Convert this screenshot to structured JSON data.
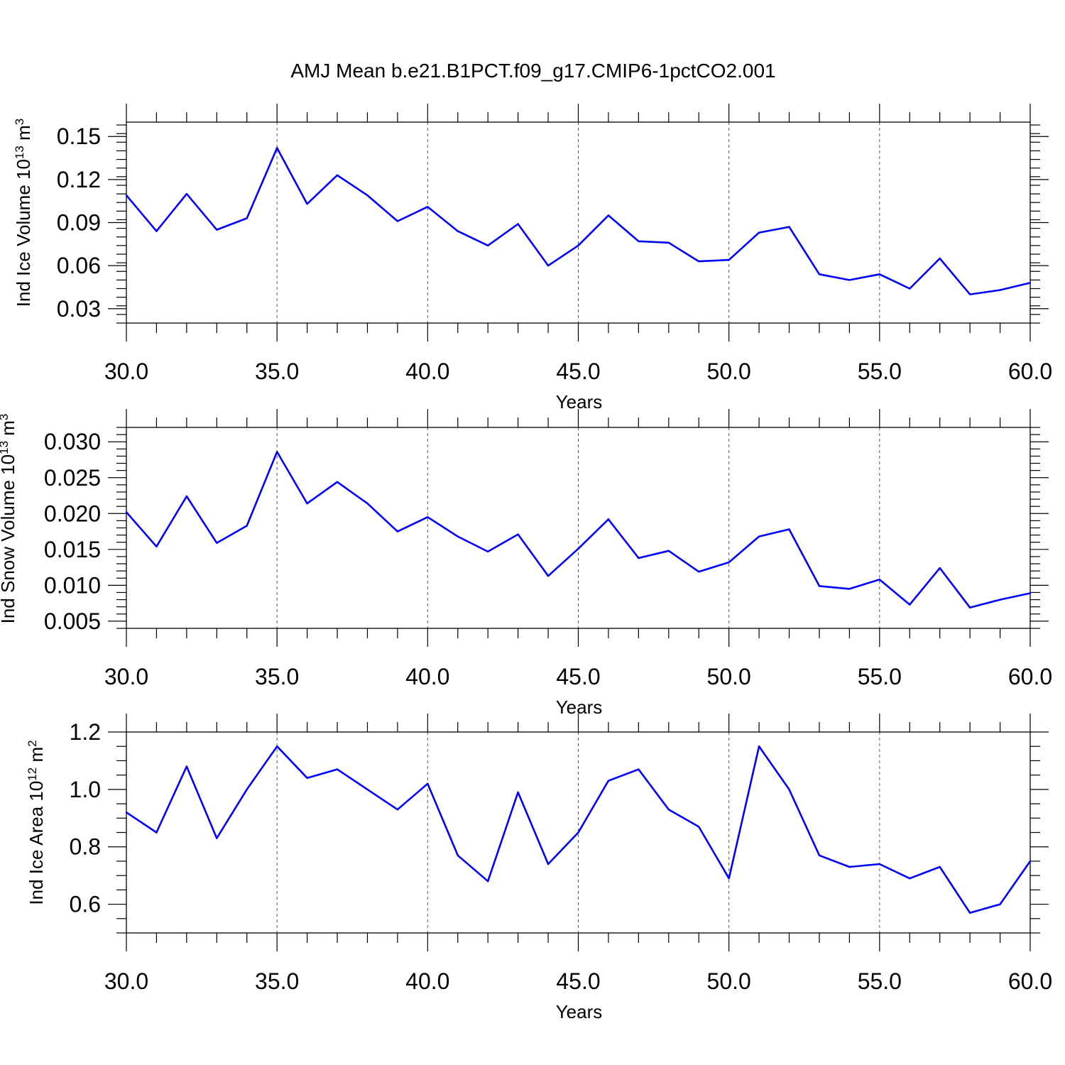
{
  "title": "AMJ Mean b.e21.B1PCT.f09_g17.CMIP6-1pctCO2.001",
  "chart_data": [
    {
      "type": "line",
      "ylabel": {
        "prefix": "Ind Ice Volume 10",
        "exp": "13",
        "unit": " m",
        "unit_exp": "3"
      },
      "xlabel": "Years",
      "xlim": [
        30,
        60
      ],
      "ylim": [
        0.02,
        0.16
      ],
      "xticks": [
        "30.0",
        "35.0",
        "40.0",
        "45.0",
        "50.0",
        "55.0",
        "60.0"
      ],
      "yticks": [
        "0.03",
        "0.06",
        "0.09",
        "0.12",
        "0.15"
      ],
      "x": [
        30,
        31,
        32,
        33,
        34,
        35,
        36,
        37,
        38,
        39,
        40,
        41,
        42,
        43,
        44,
        45,
        46,
        47,
        48,
        49,
        50,
        51,
        52,
        53,
        54,
        55,
        56,
        57,
        58,
        59,
        60
      ],
      "values": [
        0.109,
        0.084,
        0.11,
        0.085,
        0.093,
        0.142,
        0.103,
        0.123,
        0.109,
        0.091,
        0.101,
        0.084,
        0.074,
        0.089,
        0.06,
        0.074,
        0.095,
        0.077,
        0.076,
        0.063,
        0.064,
        0.083,
        0.087,
        0.054,
        0.05,
        0.054,
        0.044,
        0.065,
        0.04,
        0.043,
        0.048
      ],
      "color": "#0000ff",
      "grid": "dashed vertical"
    },
    {
      "type": "line",
      "ylabel": {
        "prefix": "Ind Snow Volume 10",
        "exp": "13",
        "unit": " m",
        "unit_exp": "3"
      },
      "xlabel": "Years",
      "xlim": [
        30,
        60
      ],
      "ylim": [
        0.004,
        0.032
      ],
      "xticks": [
        "30.0",
        "35.0",
        "40.0",
        "45.0",
        "50.0",
        "55.0",
        "60.0"
      ],
      "yticks": [
        "0.005",
        "0.010",
        "0.015",
        "0.020",
        "0.025",
        "0.030"
      ],
      "x": [
        30,
        31,
        32,
        33,
        34,
        35,
        36,
        37,
        38,
        39,
        40,
        41,
        42,
        43,
        44,
        45,
        46,
        47,
        48,
        49,
        50,
        51,
        52,
        53,
        54,
        55,
        56,
        57,
        58,
        59,
        60
      ],
      "values": [
        0.0202,
        0.0154,
        0.0224,
        0.0159,
        0.0183,
        0.0286,
        0.0214,
        0.0244,
        0.0214,
        0.0175,
        0.0195,
        0.0168,
        0.0147,
        0.0171,
        0.0113,
        0.0151,
        0.0192,
        0.0138,
        0.0148,
        0.0119,
        0.0132,
        0.0168,
        0.0178,
        0.0099,
        0.0095,
        0.0108,
        0.0073,
        0.0124,
        0.0069,
        0.008,
        0.0089
      ],
      "color": "#0000ff",
      "grid": "dashed vertical"
    },
    {
      "type": "line",
      "ylabel": {
        "prefix": "Ind Ice Area 10",
        "exp": "12",
        "unit": " m",
        "unit_exp": "2"
      },
      "xlabel": "Years",
      "xlim": [
        30,
        60
      ],
      "ylim": [
        0.5,
        1.2
      ],
      "xticks": [
        "30.0",
        "35.0",
        "40.0",
        "45.0",
        "50.0",
        "55.0",
        "60.0"
      ],
      "yticks": [
        "0.6",
        "0.8",
        "1.0",
        "1.2"
      ],
      "x": [
        30,
        31,
        32,
        33,
        34,
        35,
        36,
        37,
        38,
        39,
        40,
        41,
        42,
        43,
        44,
        45,
        46,
        47,
        48,
        49,
        50,
        51,
        52,
        53,
        54,
        55,
        56,
        57,
        58,
        59,
        60
      ],
      "values": [
        0.92,
        0.85,
        1.08,
        0.83,
        1.0,
        1.15,
        1.04,
        1.07,
        1.0,
        0.93,
        1.02,
        0.77,
        0.68,
        0.99,
        0.74,
        0.85,
        1.03,
        1.07,
        0.93,
        0.87,
        0.69,
        1.15,
        1.0,
        0.77,
        0.73,
        0.74,
        0.69,
        0.73,
        0.57,
        0.6,
        0.75
      ],
      "color": "#0000ff",
      "grid": "dashed vertical"
    }
  ]
}
